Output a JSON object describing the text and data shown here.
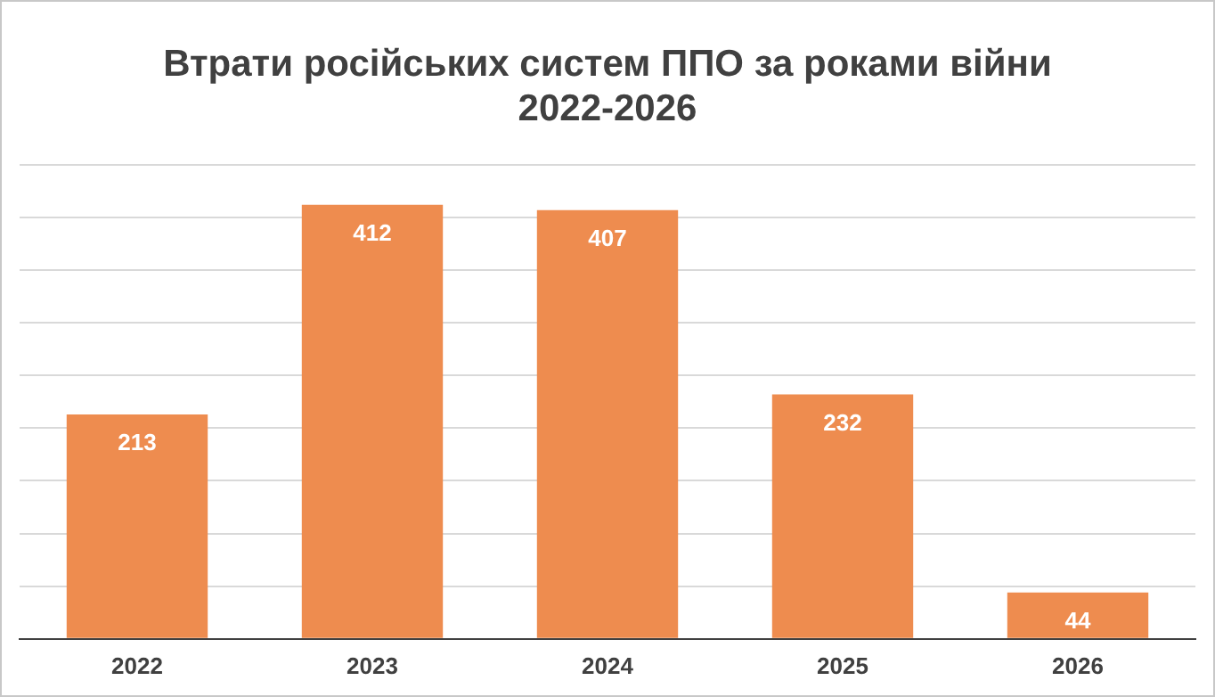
{
  "chart_data": {
    "type": "bar",
    "title": "Втрати російських систем ППО за роками війни\n2022-2026",
    "categories": [
      "2022",
      "2023",
      "2024",
      "2025",
      "2026"
    ],
    "values": [
      213,
      412,
      407,
      232,
      44
    ],
    "color": "#ee8c4f",
    "ylim": [
      0,
      450
    ],
    "yticks": [
      0,
      50,
      100,
      150,
      200,
      250,
      300,
      350,
      400,
      450
    ],
    "grid": "y",
    "tick_labels": "x",
    "data_labels": true
  }
}
